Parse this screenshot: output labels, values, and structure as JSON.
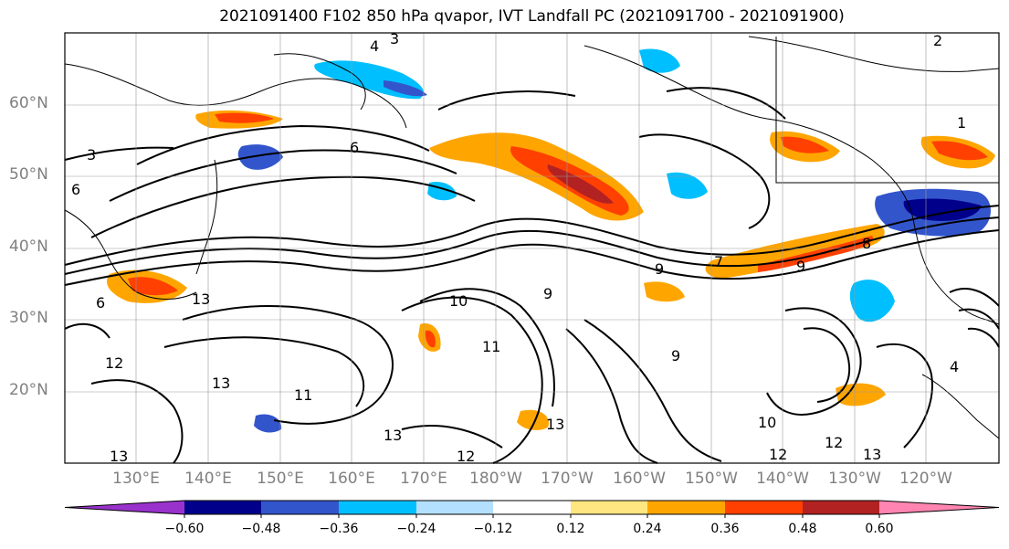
{
  "title": "2021091400 F102 850 hPa qvapor, IVT Landfall PC (2021091700 - 2021091900)",
  "lat_labels": [
    "60°N",
    "50°N",
    "40°N",
    "30°N",
    "20°N"
  ],
  "lon_labels": [
    "130°E",
    "140°E",
    "150°E",
    "160°E",
    "170°E",
    "180°W",
    "170°W",
    "160°W",
    "150°W",
    "140°W",
    "130°W",
    "120°W"
  ],
  "contour_labels": [
    "4",
    "3",
    "3",
    "6",
    "6",
    "6",
    "13",
    "12",
    "13",
    "11",
    "10",
    "11",
    "9",
    "9",
    "9",
    "7",
    "9",
    "8",
    "13",
    "13",
    "12",
    "12",
    "13",
    "10",
    "12",
    "13",
    "4",
    "2",
    "1"
  ],
  "colorbar": {
    "ticks": [
      "−0.60",
      "−0.48",
      "−0.36",
      "−0.24",
      "−0.12",
      "0.12",
      "0.24",
      "0.36",
      "0.48",
      "0.60"
    ],
    "colors": [
      "#9932cc",
      "#00008b",
      "#3355cc",
      "#00bfff",
      "#b3e0ff",
      "#ffffff",
      "#ffe680",
      "#ffa500",
      "#ff4000",
      "#b22222",
      "#ff85b0"
    ]
  }
}
